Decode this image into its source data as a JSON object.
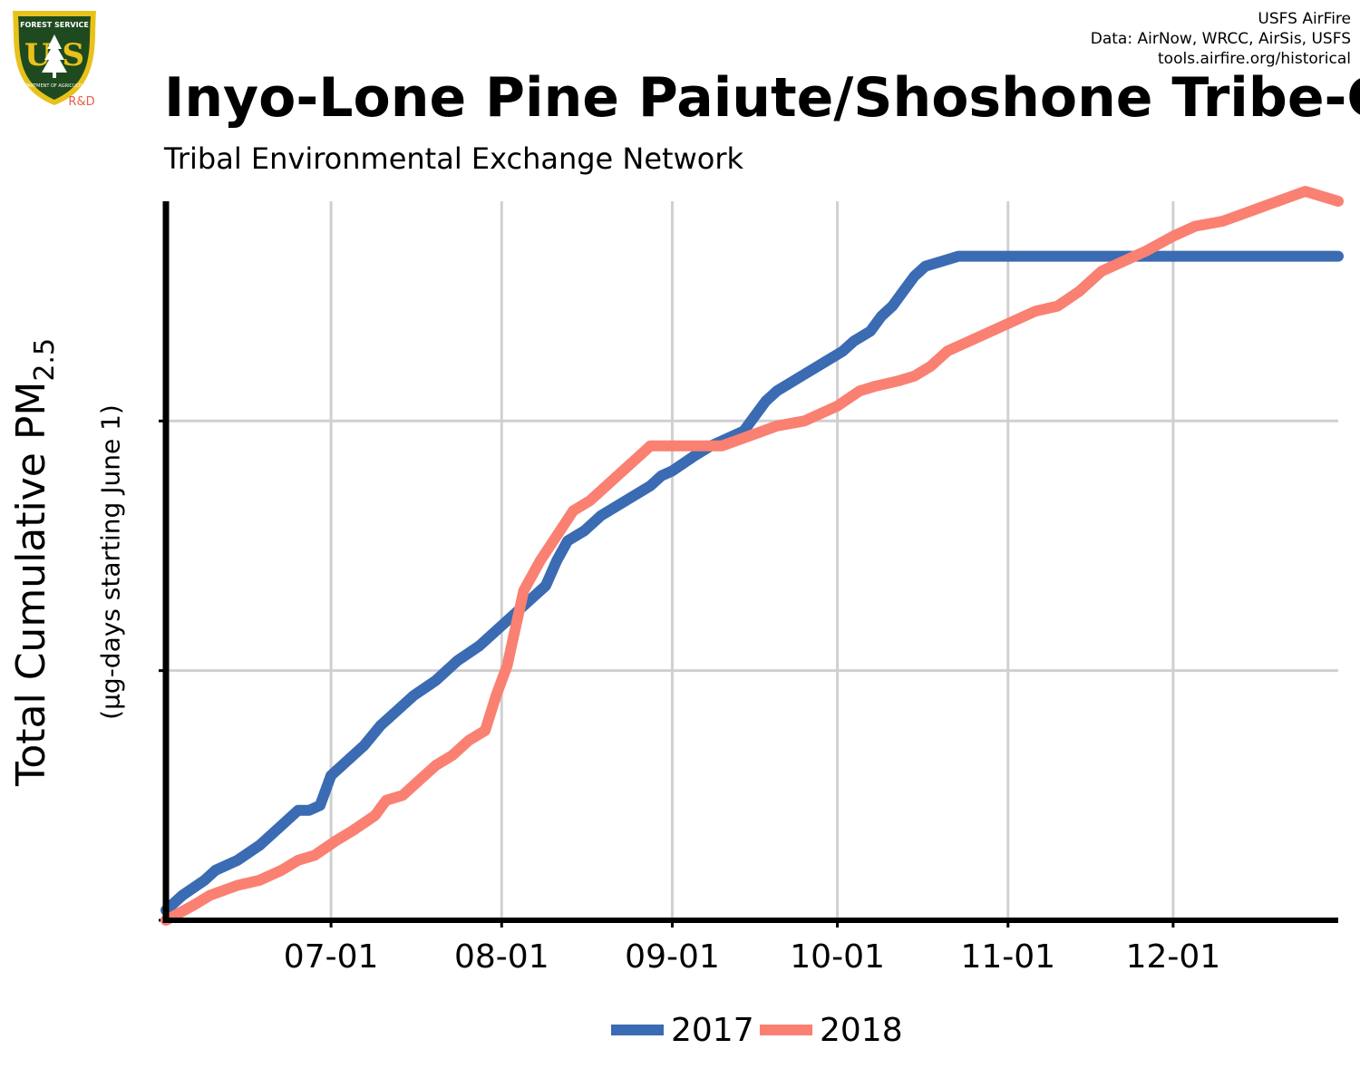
{
  "header": {
    "title": "Inyo-Lone Pine Paiute/Shoshone Tribe-CA",
    "subtitle": "Tribal Environmental Exchange Network",
    "credits": [
      "USFS AirFire",
      "Data: AirNow, WRCC, AirSis, USFS",
      "tools.airfire.org/historical"
    ],
    "logo": {
      "top_text": "FOREST SERVICE",
      "letters": "U S",
      "bottom_text": "DEPARTMENT OF AGRICULTURE",
      "tag": "R&D",
      "colors": {
        "shield": "#1f4a1f",
        "border": "#e8c21a",
        "tag": "#e8604a"
      }
    }
  },
  "chart_data": {
    "type": "line",
    "title": "Inyo-Lone Pine Paiute/Shoshone Tribe-CA",
    "subtitle": "Tribal Environmental Exchange Network",
    "ylabel": "Total Cumulative PM2.5",
    "ylabel_main": "Total Cumulative PM",
    "ylabel_subscript": "2.5",
    "ylabel_note": "(µg-days starting June 1)",
    "xlabel": "",
    "x_ticks": [
      "07-01",
      "08-01",
      "09-01",
      "10-01",
      "11-01",
      "12-01"
    ],
    "x_range": [
      "06-01",
      "12-31"
    ],
    "y_range": [
      0,
      1.44
    ],
    "y_unlabeled_gridlines": [
      0,
      0.5,
      1.0
    ],
    "grid": true,
    "legend_position": "bottom",
    "series": [
      {
        "name": "2017",
        "color": "#3a6bb3",
        "x": [
          "06-01",
          "06-04",
          "06-08",
          "06-10",
          "06-14",
          "06-18",
          "06-21",
          "06-25",
          "06-27",
          "06-29",
          "07-01",
          "07-04",
          "07-07",
          "07-10",
          "07-13",
          "07-16",
          "07-20",
          "07-24",
          "07-28",
          "08-01",
          "08-04",
          "08-06",
          "08-09",
          "08-11",
          "08-13",
          "08-16",
          "08-19",
          "08-22",
          "08-25",
          "08-28",
          "08-30",
          "09-01",
          "09-05",
          "09-08",
          "09-12",
          "09-14",
          "09-16",
          "09-18",
          "09-20",
          "09-23",
          "09-26",
          "09-29",
          "10-02",
          "10-04",
          "10-07",
          "10-09",
          "10-11",
          "10-13",
          "10-15",
          "10-17",
          "10-20",
          "10-23",
          "11-01",
          "11-15",
          "12-01",
          "12-15",
          "12-31"
        ],
        "values": [
          0.02,
          0.05,
          0.08,
          0.1,
          0.12,
          0.15,
          0.18,
          0.22,
          0.22,
          0.23,
          0.29,
          0.32,
          0.35,
          0.39,
          0.42,
          0.45,
          0.48,
          0.52,
          0.55,
          0.59,
          0.62,
          0.64,
          0.67,
          0.72,
          0.76,
          0.78,
          0.81,
          0.83,
          0.85,
          0.87,
          0.89,
          0.9,
          0.93,
          0.95,
          0.97,
          0.98,
          1.01,
          1.04,
          1.06,
          1.08,
          1.1,
          1.12,
          1.14,
          1.16,
          1.18,
          1.21,
          1.23,
          1.26,
          1.29,
          1.31,
          1.32,
          1.33,
          1.33,
          1.33,
          1.33,
          1.33,
          1.33
        ]
      },
      {
        "name": "2018",
        "color": "#fa8072",
        "x": [
          "06-01",
          "06-06",
          "06-09",
          "06-14",
          "06-18",
          "06-22",
          "06-25",
          "06-28",
          "07-02",
          "07-05",
          "07-09",
          "07-11",
          "07-14",
          "07-17",
          "07-20",
          "07-23",
          "07-26",
          "07-29",
          "07-31",
          "08-02",
          "08-03",
          "08-05",
          "08-08",
          "08-11",
          "08-14",
          "08-17",
          "08-20",
          "08-23",
          "08-26",
          "08-28",
          "09-01",
          "09-05",
          "09-10",
          "09-15",
          "09-20",
          "09-25",
          "10-01",
          "10-05",
          "10-08",
          "10-12",
          "10-15",
          "10-18",
          "10-21",
          "10-25",
          "10-29",
          "11-02",
          "11-06",
          "11-10",
          "11-14",
          "11-18",
          "11-22",
          "11-26",
          "12-01",
          "12-05",
          "12-10",
          "12-15",
          "12-20",
          "12-25",
          "12-31"
        ],
        "values": [
          0,
          0.03,
          0.05,
          0.07,
          0.08,
          0.1,
          0.12,
          0.13,
          0.16,
          0.18,
          0.21,
          0.24,
          0.25,
          0.28,
          0.31,
          0.33,
          0.36,
          0.38,
          0.45,
          0.51,
          0.56,
          0.66,
          0.72,
          0.77,
          0.82,
          0.84,
          0.87,
          0.9,
          0.93,
          0.95,
          0.95,
          0.95,
          0.95,
          0.97,
          0.99,
          1.0,
          1.03,
          1.06,
          1.07,
          1.08,
          1.09,
          1.11,
          1.14,
          1.16,
          1.18,
          1.2,
          1.22,
          1.23,
          1.26,
          1.3,
          1.32,
          1.34,
          1.37,
          1.39,
          1.4,
          1.42,
          1.44,
          1.46,
          1.44
        ]
      }
    ]
  }
}
